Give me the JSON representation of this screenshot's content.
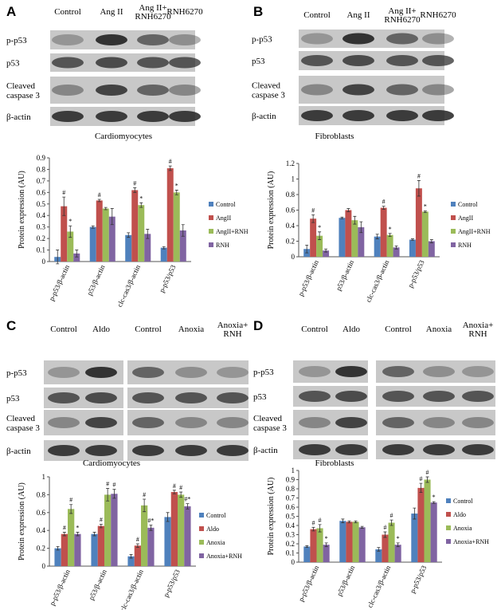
{
  "panels": [
    {
      "letter": "A",
      "lanes": [
        [
          "Control"
        ],
        [
          "Ang II"
        ],
        [
          "Ang II+",
          "RNH6270"
        ],
        [
          "RNH6270"
        ]
      ],
      "rows": [
        [
          "p-p53"
        ],
        [
          "p53"
        ],
        [
          "Cleaved",
          "caspase 3"
        ],
        [
          "β-actin"
        ]
      ],
      "caption": "Cardiomyocytes"
    },
    {
      "letter": "B",
      "lanes": [
        [
          "Control"
        ],
        [
          "Ang II"
        ],
        [
          "Ang II+",
          "RNH6270"
        ],
        [
          "RNH6270"
        ]
      ],
      "rows": [
        [
          "p-p53"
        ],
        [
          "p53"
        ],
        [
          "Cleaved",
          "caspase 3"
        ],
        [
          "β-actin"
        ]
      ],
      "caption": "Fibroblasts"
    },
    {
      "letter": "C",
      "lanes": [
        [
          "Control"
        ],
        [
          "Aldo"
        ],
        [
          "Control"
        ],
        [
          "Anoxia"
        ],
        [
          "Anoxia+",
          "RNH"
        ]
      ],
      "rows": [
        [
          "p-p53"
        ],
        [
          "p53"
        ],
        [
          "Cleaved",
          "caspase 3"
        ],
        [
          "β-actin"
        ]
      ],
      "caption": "Cardiomyocytes"
    },
    {
      "letter": "D",
      "lanes": [
        [
          "Control"
        ],
        [
          "Aldo"
        ],
        [
          "Control"
        ],
        [
          "Anoxia"
        ],
        [
          "Anoxia+",
          "RNH"
        ]
      ],
      "rows": [
        [
          "p-p53"
        ],
        [
          "p53"
        ],
        [
          "Cleaved",
          "caspase 3"
        ],
        [
          "β-actin"
        ]
      ],
      "caption": "Fibroblasts"
    }
  ],
  "chart_data": [
    {
      "type": "bar",
      "y_label": "Protein expression (AU)",
      "categories": [
        "p-p53/β-actin",
        "p53/β-actin",
        "clc-cas3/β-actin",
        "p-p53/p53"
      ],
      "ylim": [
        0,
        0.9
      ],
      "yticks": [
        0,
        0.1,
        0.2,
        0.3,
        0.4,
        0.5,
        0.6,
        0.7,
        0.8,
        0.9
      ],
      "series": [
        {
          "name": "Control",
          "color": "#4f81bd",
          "values": [
            0.04,
            0.3,
            0.23,
            0.12
          ],
          "errors": [
            0.06,
            0.01,
            0.02,
            0.01
          ],
          "annotations": [
            null,
            null,
            null,
            null
          ]
        },
        {
          "name": "AngII",
          "color": "#c0504d",
          "values": [
            0.48,
            0.53,
            0.62,
            0.81
          ],
          "errors": [
            0.08,
            0.01,
            0.02,
            0.02
          ],
          "annotations": [
            "#",
            "#",
            "#",
            "#"
          ]
        },
        {
          "name": "AngII+RNH",
          "color": "#9bbb59",
          "values": [
            0.26,
            0.46,
            0.49,
            0.6
          ],
          "errors": [
            0.05,
            0.01,
            0.02,
            0.02
          ],
          "annotations": [
            "*",
            null,
            "*",
            "*"
          ]
        },
        {
          "name": "RNH",
          "color": "#8064a2",
          "values": [
            0.07,
            0.39,
            0.24,
            0.27
          ],
          "errors": [
            0.03,
            0.07,
            0.04,
            0.05
          ],
          "annotations": [
            null,
            null,
            null,
            null
          ]
        }
      ]
    },
    {
      "type": "bar",
      "y_label": "Protein expression (AU)",
      "categories": [
        "p-p53/β-actin",
        "p53/β-actin",
        "clc-cas3/β-actin",
        "p-p53/p53"
      ],
      "ylim": [
        0,
        1.2
      ],
      "yticks": [
        0,
        0.2,
        0.4,
        0.6,
        0.8,
        1,
        1.2
      ],
      "series": [
        {
          "name": "Control",
          "color": "#4f81bd",
          "values": [
            0.1,
            0.5,
            0.26,
            0.22
          ],
          "errors": [
            0.05,
            0.01,
            0.03,
            0.01
          ],
          "annotations": [
            null,
            null,
            null,
            null
          ]
        },
        {
          "name": "AngII",
          "color": "#c0504d",
          "values": [
            0.49,
            0.6,
            0.63,
            0.88
          ],
          "errors": [
            0.05,
            0.02,
            0.02,
            0.1
          ],
          "annotations": [
            "#",
            null,
            "#",
            "#"
          ]
        },
        {
          "name": "AngII+RNH",
          "color": "#9bbb59",
          "values": [
            0.27,
            0.47,
            0.28,
            0.58
          ],
          "errors": [
            0.05,
            0.05,
            0.02,
            0.01
          ],
          "annotations": [
            "*",
            null,
            "*",
            "*"
          ]
        },
        {
          "name": "RNH",
          "color": "#8064a2",
          "values": [
            0.08,
            0.38,
            0.12,
            0.2
          ],
          "errors": [
            0.02,
            0.07,
            0.02,
            0.02
          ],
          "annotations": [
            null,
            null,
            null,
            null
          ]
        }
      ]
    },
    {
      "type": "bar",
      "y_label": "Protein expression (AU)",
      "categories": [
        "p-p53/β-actin",
        "p53/β-actin",
        "clc-cas3/β-actin",
        "p-p53/p53"
      ],
      "ylim": [
        0,
        1
      ],
      "yticks": [
        0,
        0.2,
        0.4,
        0.6,
        0.8,
        1
      ],
      "series": [
        {
          "name": "Control",
          "color": "#4f81bd",
          "values": [
            0.2,
            0.36,
            0.11,
            0.55
          ],
          "errors": [
            0.02,
            0.02,
            0.02,
            0.05
          ],
          "annotations": [
            null,
            null,
            null,
            null
          ]
        },
        {
          "name": "Aldo",
          "color": "#c0504d",
          "values": [
            0.36,
            0.45,
            0.23,
            0.83
          ],
          "errors": [
            0.02,
            0.02,
            0.02,
            0.02
          ],
          "annotations": [
            "#",
            "#",
            "#",
            "#"
          ]
        },
        {
          "name": "Anoxia",
          "color": "#9bbb59",
          "values": [
            0.64,
            0.8,
            0.68,
            0.8
          ],
          "errors": [
            0.05,
            0.07,
            0.07,
            0.03
          ],
          "annotations": [
            "#",
            "#",
            "#",
            "#"
          ]
        },
        {
          "name": "Anoxia+RNH",
          "color": "#8064a2",
          "values": [
            0.36,
            0.81,
            0.43,
            0.67
          ],
          "errors": [
            0.02,
            0.05,
            0.03,
            0.03
          ],
          "annotations": [
            "*",
            "#",
            "#*",
            "#*"
          ]
        }
      ]
    },
    {
      "type": "bar",
      "y_label": "Protein expression (AU)",
      "categories": [
        "p-p53/β-actin",
        "p53/β-actin",
        "clc-cas3/β-actin",
        "p-p53/p53"
      ],
      "ylim": [
        0,
        1
      ],
      "yticks": [
        0,
        0.1,
        0.2,
        0.3,
        0.4,
        0.5,
        0.6,
        0.7,
        0.8,
        0.9,
        1
      ],
      "series": [
        {
          "name": "Control",
          "color": "#4f81bd",
          "values": [
            0.17,
            0.45,
            0.14,
            0.53
          ],
          "errors": [
            0.01,
            0.02,
            0.02,
            0.06
          ],
          "annotations": [
            null,
            null,
            null,
            null
          ]
        },
        {
          "name": "Aldo",
          "color": "#c0504d",
          "values": [
            0.36,
            0.44,
            0.3,
            0.81
          ],
          "errors": [
            0.02,
            0.01,
            0.03,
            0.05
          ],
          "annotations": [
            "#",
            null,
            "#",
            "#"
          ]
        },
        {
          "name": "Anoxia",
          "color": "#9bbb59",
          "values": [
            0.37,
            0.44,
            0.43,
            0.9
          ],
          "errors": [
            0.04,
            0.01,
            0.03,
            0.03
          ],
          "annotations": [
            "#",
            null,
            "#",
            "#"
          ]
        },
        {
          "name": "Anoxia+RNH",
          "color": "#8064a2",
          "values": [
            0.19,
            0.38,
            0.19,
            0.65
          ],
          "errors": [
            0.02,
            0.01,
            0.02,
            0.01
          ],
          "annotations": [
            "*",
            null,
            "*",
            "*"
          ]
        }
      ]
    }
  ]
}
